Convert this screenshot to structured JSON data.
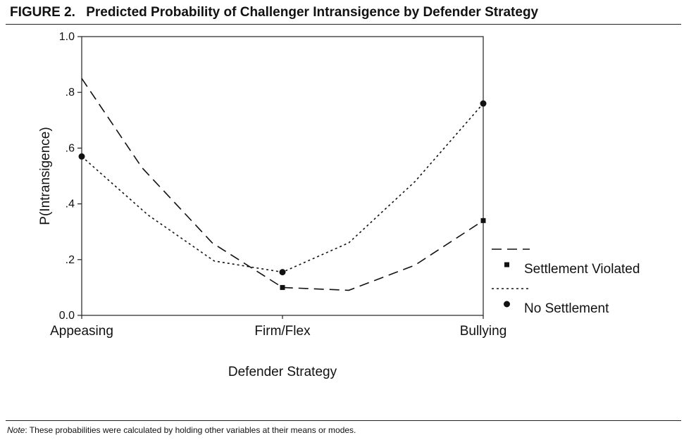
{
  "figure": {
    "label": "FIGURE 2.",
    "title": "Predicted Probability of Challenger Intransigence by Defender Strategy",
    "note_label": "Note",
    "note_text": ": These probabilities were calculated by holding other variables at their means or modes."
  },
  "chart_data": {
    "type": "line",
    "xlabel": "Defender Strategy",
    "ylabel": "P(Intransigence)",
    "categories": [
      "Appeasing",
      "Firm/Flex",
      "Bullying"
    ],
    "ylim": [
      0,
      1
    ],
    "yticks": [
      {
        "value": 0.0,
        "label": "0.0"
      },
      {
        "value": 0.2,
        "label": ".2"
      },
      {
        "value": 0.4,
        "label": ".4"
      },
      {
        "value": 0.6,
        "label": ".6"
      },
      {
        "value": 0.8,
        "label": ".8"
      },
      {
        "value": 1.0,
        "label": "1.0"
      }
    ],
    "grid": false,
    "legend_position": "right",
    "series": [
      {
        "name": "Settlement Violated",
        "line_style": "dashed",
        "marker": "square",
        "points": [
          {
            "x": 0.0,
            "y": 0.85
          },
          {
            "x": 0.3,
            "y": 0.53
          },
          {
            "x": 0.65,
            "y": 0.26
          },
          {
            "x": 1.0,
            "y": 0.1
          },
          {
            "x": 1.33,
            "y": 0.09
          },
          {
            "x": 1.66,
            "y": 0.18
          },
          {
            "x": 2.0,
            "y": 0.34
          }
        ],
        "markers": [
          {
            "x": 1.0,
            "y": 0.1
          },
          {
            "x": 2.0,
            "y": 0.34
          }
        ]
      },
      {
        "name": "No Settlement",
        "line_style": "dotted",
        "marker": "circle",
        "points": [
          {
            "x": 0.0,
            "y": 0.57
          },
          {
            "x": 0.33,
            "y": 0.36
          },
          {
            "x": 0.66,
            "y": 0.195
          },
          {
            "x": 1.0,
            "y": 0.155
          },
          {
            "x": 1.33,
            "y": 0.26
          },
          {
            "x": 1.66,
            "y": 0.48
          },
          {
            "x": 2.0,
            "y": 0.76
          }
        ],
        "markers": [
          {
            "x": 0.0,
            "y": 0.57
          },
          {
            "x": 1.0,
            "y": 0.155
          },
          {
            "x": 2.0,
            "y": 0.76
          }
        ]
      }
    ]
  }
}
